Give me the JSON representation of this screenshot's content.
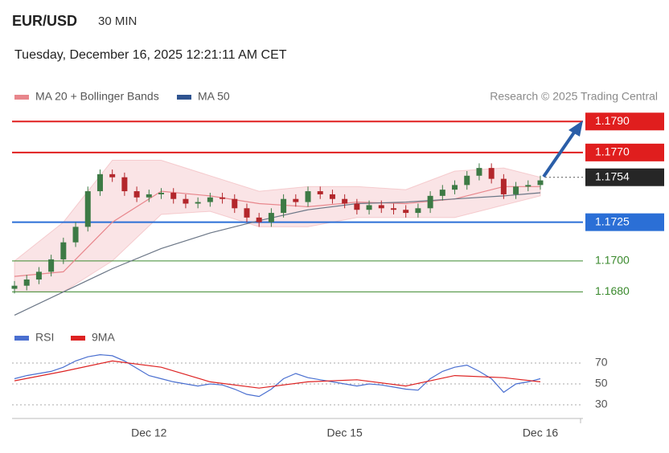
{
  "header": {
    "symbol": "EUR/USD",
    "interval": "30 MIN",
    "datetime": "Tuesday, December 16, 2025 12:21:11 AM CET",
    "credit": "Research © 2025 Trading Central"
  },
  "chart_data": [
    {
      "type": "candlestick",
      "categories": [
        null,
        null,
        null,
        null,
        null,
        null,
        null,
        null,
        null,
        null,
        null,
        "Dec 12",
        null,
        null,
        null,
        null,
        null,
        null,
        null,
        null,
        null,
        null,
        null,
        null,
        null,
        null,
        null,
        "Dec 15",
        null,
        null,
        null,
        null,
        null,
        null,
        null,
        null,
        null,
        null,
        null,
        null,
        null,
        null,
        null,
        "Dec 16"
      ],
      "open": [
        1.1682,
        1.1684,
        1.1688,
        1.1693,
        1.1701,
        1.1712,
        1.1722,
        1.1745,
        1.1756,
        1.1754,
        1.1745,
        1.1741,
        1.1743,
        1.1744,
        1.174,
        1.1737,
        1.1738,
        1.1741,
        1.174,
        1.1734,
        1.1728,
        1.1725,
        1.1731,
        1.174,
        1.1738,
        1.1745,
        1.1743,
        1.174,
        1.1737,
        1.1733,
        1.1736,
        1.1734,
        1.1733,
        1.1731,
        1.1734,
        1.1742,
        1.1746,
        1.1749,
        1.1755,
        1.176,
        1.1753,
        1.1743,
        1.1748,
        1.1749
      ],
      "high": [
        1.1687,
        1.1691,
        1.1696,
        1.1704,
        1.1715,
        1.1725,
        1.1748,
        1.1759,
        1.1759,
        1.1757,
        1.1748,
        1.1746,
        1.1747,
        1.1747,
        1.1743,
        1.1741,
        1.1744,
        1.1744,
        1.1743,
        1.1737,
        1.1731,
        1.1734,
        1.1743,
        1.1743,
        1.1748,
        1.1748,
        1.1746,
        1.1743,
        1.174,
        1.1739,
        1.1739,
        1.1737,
        1.1736,
        1.1737,
        1.1745,
        1.1749,
        1.1752,
        1.1758,
        1.1763,
        1.1763,
        1.1756,
        1.1751,
        1.1752,
        1.1755
      ],
      "low": [
        1.1679,
        1.1681,
        1.1685,
        1.169,
        1.1698,
        1.1709,
        1.1719,
        1.1742,
        1.1751,
        1.1742,
        1.1738,
        1.1738,
        1.174,
        1.1737,
        1.1734,
        1.1734,
        1.1735,
        1.1737,
        1.1731,
        1.1725,
        1.1722,
        1.1722,
        1.1728,
        1.1735,
        1.1735,
        1.174,
        1.1737,
        1.1734,
        1.173,
        1.173,
        1.1731,
        1.173,
        1.1728,
        1.1728,
        1.1731,
        1.1739,
        1.1743,
        1.1746,
        1.1752,
        1.175,
        1.174,
        1.174,
        1.1745,
        1.1746
      ],
      "close": [
        1.1684,
        1.1688,
        1.1693,
        1.1701,
        1.1712,
        1.1722,
        1.1745,
        1.1756,
        1.1754,
        1.1745,
        1.1741,
        1.1743,
        1.1744,
        1.174,
        1.1737,
        1.1738,
        1.1741,
        1.174,
        1.1734,
        1.1728,
        1.1725,
        1.1731,
        1.174,
        1.1738,
        1.1745,
        1.1743,
        1.174,
        1.1737,
        1.1733,
        1.1736,
        1.1734,
        1.1733,
        1.1731,
        1.1734,
        1.1742,
        1.1746,
        1.1749,
        1.1755,
        1.176,
        1.1753,
        1.1743,
        1.1748,
        1.1749,
        1.1752
      ],
      "up_color": "#3d7a45",
      "down_color": "#b3262b",
      "ylim": [
        1.166,
        1.18
      ],
      "series": [
        {
          "name": "MA 20 + Bollinger Bands",
          "color": "#e8868c",
          "x": [
            0,
            4,
            8,
            12,
            16,
            20,
            24,
            28,
            32,
            36,
            40,
            43
          ],
          "values": [
            1.169,
            1.1693,
            1.1725,
            1.1745,
            1.1742,
            1.1737,
            1.1735,
            1.1738,
            1.1737,
            1.174,
            1.1748,
            1.1748
          ],
          "upper": [
            1.17,
            1.1725,
            1.1765,
            1.1765,
            1.1755,
            1.1745,
            1.1748,
            1.1748,
            1.1746,
            1.1758,
            1.176,
            1.1754
          ],
          "lower": [
            1.168,
            1.168,
            1.17,
            1.173,
            1.1732,
            1.1722,
            1.1722,
            1.1728,
            1.1728,
            1.1728,
            1.1736,
            1.1742
          ]
        },
        {
          "name": "MA 50",
          "color": "#2f5490",
          "line_color": "#6b7686",
          "x": [
            0,
            4,
            8,
            12,
            16,
            20,
            24,
            28,
            32,
            36,
            40,
            43
          ],
          "values": [
            1.1665,
            1.168,
            1.1695,
            1.1708,
            1.1718,
            1.1726,
            1.1733,
            1.1737,
            1.1738,
            1.174,
            1.1742,
            1.1744
          ]
        }
      ],
      "levels": [
        {
          "value": 1.179,
          "label": "1.1790",
          "color": "#e01e1e",
          "boxed": true,
          "line": "solid"
        },
        {
          "value": 1.177,
          "label": "1.1770",
          "color": "#e01e1e",
          "boxed": true,
          "line": "solid"
        },
        {
          "value": 1.1754,
          "label": "1.1754",
          "color": "#262626",
          "boxed": true,
          "line": "dotted"
        },
        {
          "value": 1.1725,
          "label": "1.1725",
          "color": "#2b6fd6",
          "boxed": true,
          "line": "solid"
        },
        {
          "value": 1.17,
          "label": "1.1700",
          "color": "#3b8a2e",
          "boxed": false,
          "line": "solid"
        },
        {
          "value": 1.168,
          "label": "1.1680",
          "color": "#3b8a2e",
          "boxed": false,
          "line": "solid"
        }
      ]
    },
    {
      "type": "line",
      "ylim": [
        20,
        80
      ],
      "yticks": [
        70,
        50,
        30
      ],
      "series": [
        {
          "name": "RSI",
          "color": "#4a6fd0",
          "values": [
            55,
            58,
            60,
            62,
            66,
            72,
            76,
            78,
            77,
            72,
            65,
            58,
            55,
            52,
            50,
            48,
            50,
            49,
            45,
            40,
            38,
            45,
            55,
            60,
            56,
            54,
            52,
            50,
            48,
            50,
            49,
            47,
            45,
            44,
            55,
            62,
            66,
            68,
            62,
            55,
            42,
            50,
            52,
            55
          ]
        },
        {
          "name": "9MA",
          "color": "#dd2222",
          "x": [
            0,
            4,
            8,
            12,
            16,
            20,
            24,
            28,
            32,
            36,
            40,
            43
          ],
          "values": [
            53,
            62,
            72,
            66,
            52,
            46,
            52,
            54,
            48,
            58,
            56,
            52
          ]
        }
      ]
    }
  ]
}
